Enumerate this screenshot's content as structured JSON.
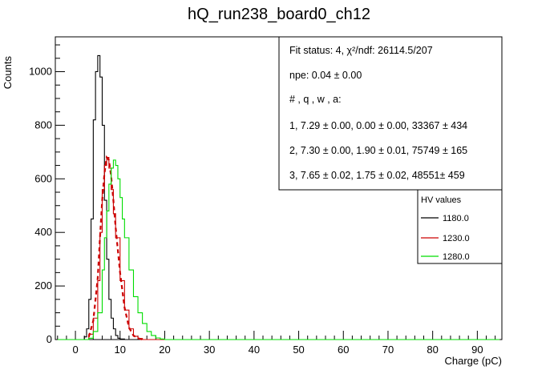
{
  "chart_data": {
    "type": "line",
    "title": "hQ_run238_board0_ch12",
    "xlabel": "Charge (pC)",
    "ylabel": "Counts",
    "xlim": [
      -4.5,
      95.5
    ],
    "ylim": [
      0,
      1130
    ],
    "x_ticks": [
      0,
      10,
      20,
      30,
      40,
      50,
      60,
      70,
      80,
      90
    ],
    "y_ticks": [
      0,
      200,
      400,
      600,
      800,
      1000
    ],
    "grid": false,
    "legend_placement": "right",
    "stats_box": {
      "lines": [
        "Fit status: 4, χ²/ndf: 26114.5/207",
        "npe: 0.04 ± 0.00",
        "# , q , w , a:",
        "1, 7.29 ± 0.00, 0.00 ± 0.00, 33367 ± 434",
        "2, 7.30 ± 0.00, 1.90 ± 0.01, 75749 ± 165",
        "3, 7.65 ± 0.02, 1.75 ± 0.02, 48551± 459"
      ]
    },
    "legend": {
      "title": "HV values",
      "entries": [
        {
          "label": "1180.0",
          "color": "#000000"
        },
        {
          "label": "1230.0",
          "color": "#cc0000"
        },
        {
          "label": "1280.0",
          "color": "#00dd00"
        }
      ]
    },
    "series": [
      {
        "color": "#000000",
        "style": "step",
        "x": [
          -4,
          1,
          2,
          2.5,
          3,
          3.5,
          4,
          4.5,
          5,
          5.5,
          6,
          6.5,
          7,
          7.5,
          8,
          8.5,
          9,
          9.5,
          10,
          11,
          95
        ],
        "y": [
          0,
          0,
          10,
          40,
          150,
          450,
          820,
          1000,
          1060,
          980,
          800,
          520,
          300,
          150,
          80,
          40,
          15,
          5,
          2,
          0,
          0
        ]
      },
      {
        "color": "#cc0000",
        "style": "step",
        "x": [
          -4,
          2,
          3,
          4,
          5,
          5.5,
          6,
          6.5,
          7,
          7.5,
          8,
          8.5,
          9,
          10,
          11,
          12,
          13,
          14,
          15,
          95
        ],
        "y": [
          0,
          0,
          20,
          80,
          220,
          400,
          560,
          650,
          680,
          640,
          560,
          470,
          380,
          220,
          110,
          40,
          12,
          4,
          0,
          0
        ]
      },
      {
        "color": "#cc0000",
        "style": "dashed",
        "x": [
          3,
          4,
          5,
          5.5,
          6,
          6.5,
          7,
          7.5,
          8,
          8.5,
          9,
          10,
          11,
          12,
          13,
          14,
          15
        ],
        "y": [
          10,
          70,
          230,
          380,
          520,
          620,
          680,
          670,
          610,
          520,
          420,
          250,
          120,
          45,
          15,
          5,
          0
        ]
      },
      {
        "color": "#00dd00",
        "style": "step",
        "x": [
          -4,
          2,
          3,
          4,
          5,
          6,
          6.5,
          7,
          7.5,
          8,
          8.5,
          9,
          9.5,
          10,
          10.5,
          11,
          12,
          13,
          14,
          15,
          16,
          17,
          18,
          19,
          20,
          95
        ],
        "y": [
          0,
          0,
          5,
          30,
          100,
          260,
          380,
          480,
          580,
          640,
          670,
          650,
          600,
          530,
          450,
          380,
          260,
          160,
          100,
          60,
          30,
          15,
          6,
          2,
          0,
          0
        ]
      }
    ]
  }
}
